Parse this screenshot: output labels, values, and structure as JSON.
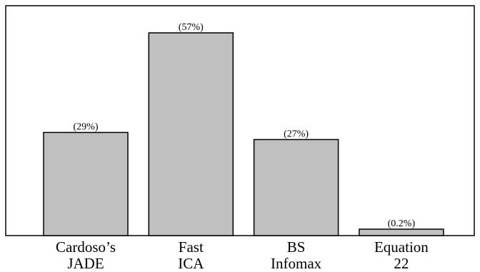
{
  "chart_data": {
    "type": "bar",
    "categories": [
      [
        "Cardoso’s",
        "JADE"
      ],
      [
        "Fast",
        "ICA"
      ],
      [
        "BS",
        "Infomax"
      ],
      [
        "Equation",
        "22"
      ]
    ],
    "values": [
      29,
      57,
      27,
      0.2
    ],
    "data_labels": [
      "(29%)",
      "(57%)",
      "(27%)",
      "(0.2%)"
    ],
    "title": "",
    "xlabel": "",
    "ylabel": "",
    "ylim": [
      0,
      57
    ],
    "grid": false,
    "legend": "none",
    "bar_color": "#c0c0c0",
    "edge_color": "#000000"
  }
}
